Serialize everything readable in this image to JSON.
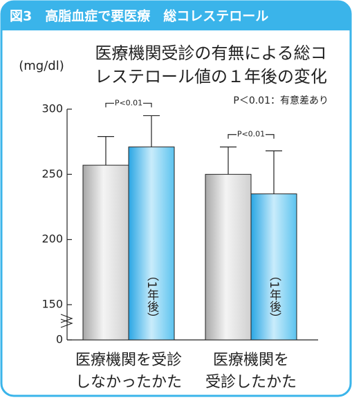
{
  "chart_data": {
    "type": "bar",
    "header": "図3　高脂血症で要医療　総コレステロール",
    "title_lines": [
      "医療機関受診の有無による総コ",
      "レステロール値の１年後の変化"
    ],
    "unit_label": "(mg/dl)",
    "note": "P＜0.01：有意差あり",
    "categories": [
      [
        "医療機関を受診",
        "しなかったかた"
      ],
      [
        "医療機関を",
        "受診したかた"
      ]
    ],
    "series": [
      {
        "color": "#c8c8c8",
        "values": [
          257,
          250
        ],
        "errors": [
          22,
          21
        ]
      },
      {
        "name": "（1年後）",
        "color": "#3ab4ea",
        "values": [
          271,
          235
        ],
        "errors": [
          24,
          33
        ]
      }
    ],
    "significance_labels": [
      "P<0.01",
      "P<0.01"
    ],
    "ylim": [
      0,
      300
    ],
    "axis_break": [
      0,
      150
    ],
    "yticks": [
      0,
      150,
      200,
      250,
      300
    ]
  }
}
